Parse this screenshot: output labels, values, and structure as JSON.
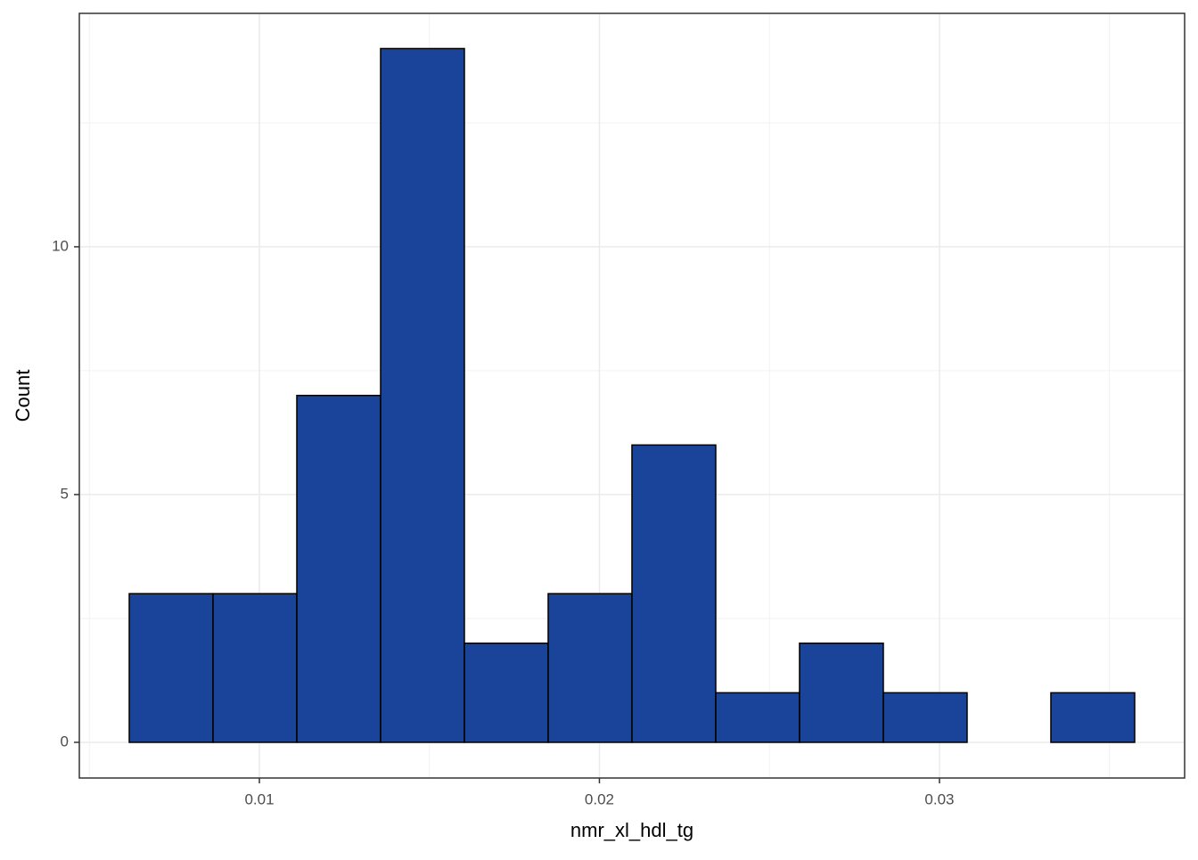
{
  "chart_data": {
    "type": "histogram",
    "x_label": "nmr_xl_hdl_tg",
    "y_label": "Count",
    "bins": [
      0.006173,
      0.008637,
      0.011101,
      0.013565,
      0.016029,
      0.018493,
      0.020957,
      0.023421,
      0.025885,
      0.028349,
      0.030813,
      0.033277,
      0.035741
    ],
    "counts": [
      3,
      3,
      7,
      14,
      2,
      3,
      6,
      1,
      2,
      1,
      0,
      1
    ],
    "color": "#1a4499",
    "xlim": [
      0.004705,
      0.03721
    ],
    "ylim": [
      -0.72,
      14.71
    ],
    "xticks": [
      0.01,
      0.02,
      0.03
    ],
    "yticks": [
      0,
      5,
      10
    ],
    "grid": true
  }
}
